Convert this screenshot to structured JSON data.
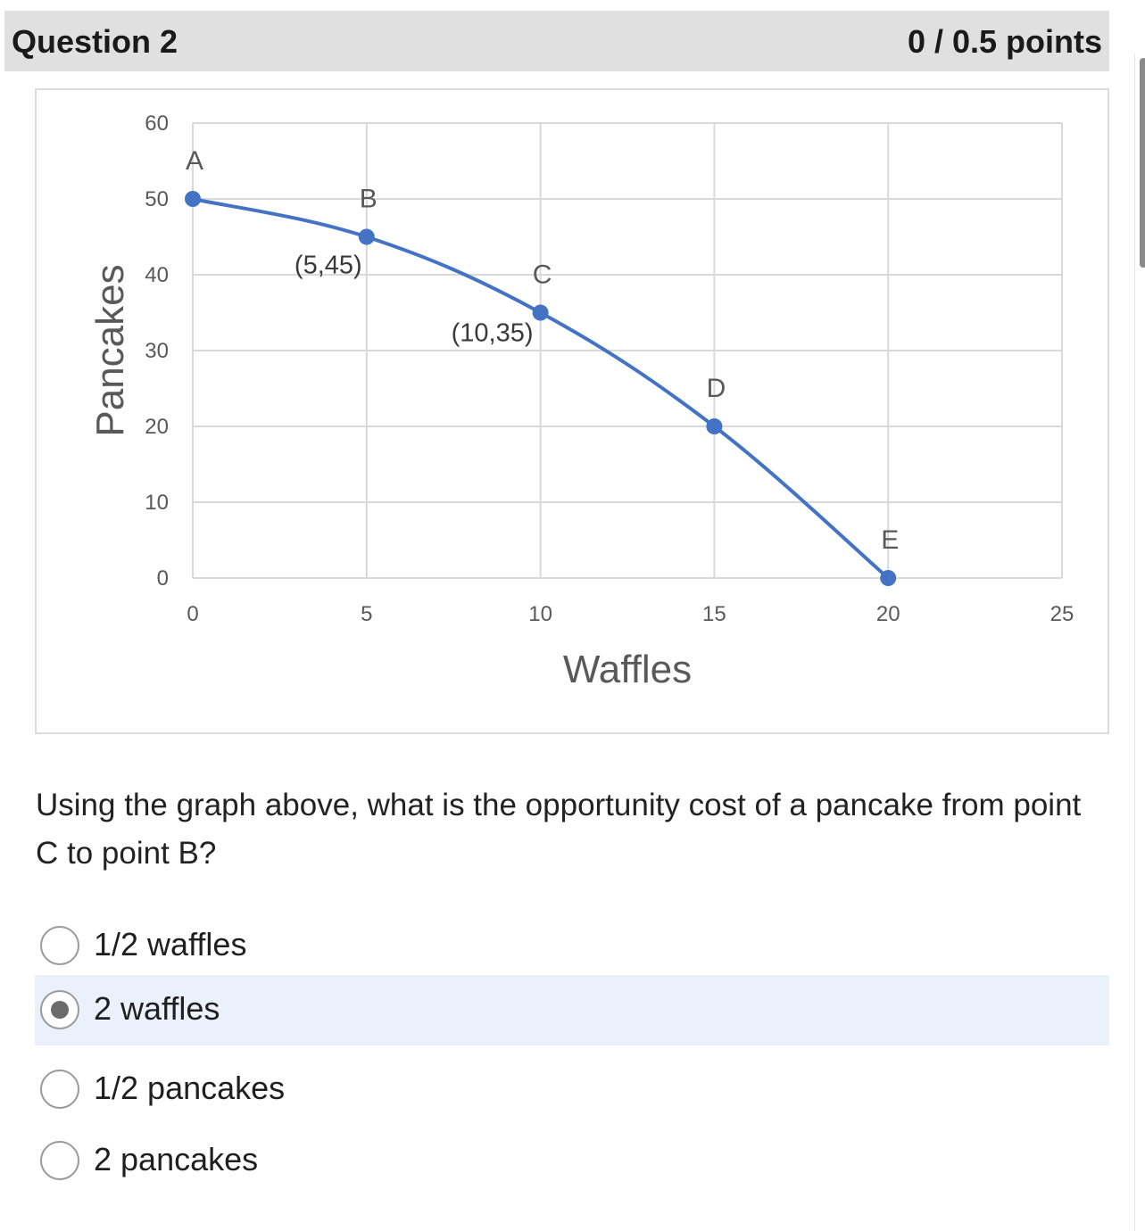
{
  "question": {
    "title": "Question 2",
    "points": "0 / 0.5 points"
  },
  "chart_data": {
    "type": "line",
    "title": "",
    "xlabel": "Waffles",
    "ylabel": "Pancakes",
    "xlim": [
      0,
      25
    ],
    "ylim": [
      0,
      60
    ],
    "x_ticks": [
      "0",
      "5",
      "10",
      "15",
      "20",
      "25"
    ],
    "y_ticks": [
      "0",
      "10",
      "20",
      "30",
      "40",
      "50",
      "60"
    ],
    "grid": true,
    "series": [
      {
        "x": [
          0,
          5,
          10,
          15,
          20
        ],
        "y": [
          50,
          45,
          35,
          20,
          0
        ],
        "color": "#4472c4"
      }
    ],
    "point_labels": [
      "A",
      "B",
      "C",
      "D",
      "E"
    ],
    "annotations": [
      "(5,45)",
      "(10,35)"
    ]
  },
  "prompt": "Using the graph above, what is the opportunity cost of a pancake from point C to point B?",
  "options": [
    {
      "label": "1/2 waffles",
      "selected": false
    },
    {
      "label": "2 waffles",
      "selected": true
    },
    {
      "label": "1/2 pancakes",
      "selected": false
    },
    {
      "label": "2 pancakes",
      "selected": false
    }
  ]
}
